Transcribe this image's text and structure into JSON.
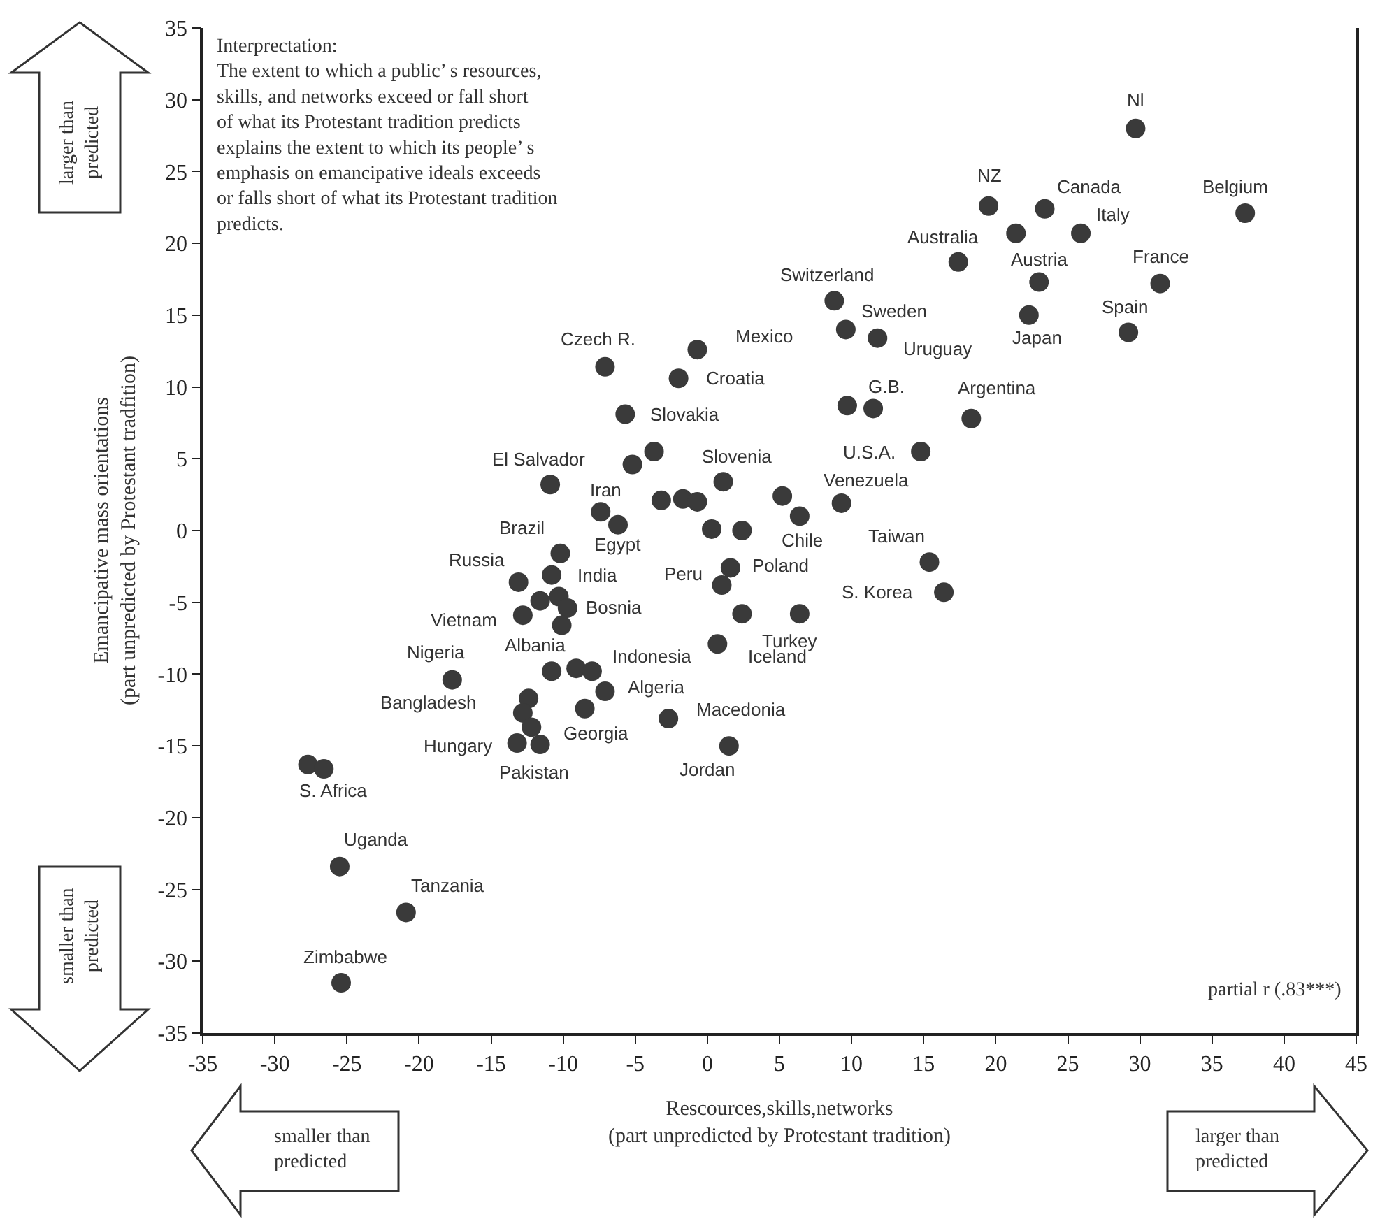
{
  "chart_data": {
    "type": "scatter",
    "xlabel": "Rescources,skills,networks\n(part unpredicted by Protestant tradition)",
    "ylabel": "Emancipative mass orientations\n(part unpredicted by Protestant tradfition)",
    "x": [
      29.7,
      19.5,
      23.4,
      37.3,
      21.4,
      25.9,
      17.4,
      23.0,
      31.4,
      8.8,
      22.3,
      29.2,
      9.6,
      11.8,
      9.7,
      11.5,
      18.3,
      14.8,
      9.3,
      15.4,
      16.4,
      -7.1,
      -0.7,
      -2.0,
      -5.7,
      -5.2,
      -3.7,
      -10.9,
      -7.4,
      -6.2,
      -3.2,
      -1.7,
      -0.7,
      1.1,
      0.3,
      2.4,
      5.2,
      6.4,
      -10.2,
      -13.1,
      -10.8,
      -12.8,
      -11.6,
      -10.3,
      -9.7,
      -10.1,
      1.0,
      1.6,
      2.4,
      6.4,
      0.7,
      -10.8,
      -9.1,
      -8.0,
      -7.1,
      -8.5,
      -2.7,
      1.5,
      -17.7,
      -12.4,
      -12.8,
      -12.2,
      -13.2,
      -11.6,
      -27.7,
      -26.6,
      -25.5,
      -20.9,
      -25.4
    ],
    "values": [
      28.0,
      22.6,
      22.4,
      22.1,
      20.7,
      20.7,
      18.7,
      17.3,
      17.2,
      16.0,
      15.0,
      13.8,
      14.0,
      13.4,
      8.7,
      8.5,
      7.8,
      5.5,
      1.9,
      -2.2,
      -4.3,
      11.4,
      12.6,
      10.6,
      8.1,
      4.6,
      5.5,
      3.2,
      1.3,
      0.4,
      2.1,
      2.2,
      2.0,
      3.4,
      0.1,
      0.0,
      2.4,
      1.0,
      -1.6,
      -3.6,
      -3.1,
      -5.9,
      -4.9,
      -4.6,
      -5.4,
      -6.6,
      -3.8,
      -2.6,
      -5.8,
      -5.8,
      -7.9,
      -9.8,
      -9.6,
      -9.8,
      -11.2,
      -12.4,
      -13.1,
      -15.0,
      -10.4,
      -11.7,
      -12.7,
      -13.7,
      -14.8,
      -14.9,
      -16.3,
      -16.6,
      -23.4,
      -26.6,
      -31.5
    ],
    "color": "#3a3a3a",
    "marker": "circle",
    "xlim": [
      -35,
      45
    ],
    "xticks": [
      -35,
      -30,
      -25,
      -20,
      -15,
      -10,
      -5,
      0,
      5,
      10,
      15,
      20,
      25,
      30,
      35,
      40,
      45
    ],
    "ylim": [
      -35,
      35
    ],
    "yticks": [
      -35,
      -30,
      -25,
      -20,
      -15,
      -10,
      -5,
      0,
      5,
      10,
      15,
      20,
      25,
      30,
      35
    ],
    "annotations": [
      "Interprectation:\nThe extent to which a public’ s resources,\nskills, and networks exceed or fall short\nof what its Protestant tradition predicts\nexplains the extent to which its people’ s\nemphasis on emancipative ideals exceeds\nor falls short of what its Protestant tradition\npredicts.",
      "partial r (.83***)",
      "larger than\npredicted",
      "smaller than\npredicted",
      "smaller than\npredicted",
      "larger than\npredicted",
      {
        "text": "Nl",
        "x": 29.7,
        "y": 28.0
      },
      {
        "text": "NZ",
        "x": 19.5,
        "y": 22.6
      },
      {
        "text": "Canada",
        "x": 23.4,
        "y": 22.4
      },
      {
        "text": "Belgium",
        "x": 37.3,
        "y": 22.1
      },
      {
        "text": "Australia",
        "x": 21.4,
        "y": 20.7
      },
      {
        "text": "Italy",
        "x": 25.9,
        "y": 20.7
      },
      {
        "text": "Austria",
        "x": 23.0,
        "y": 17.3
      },
      {
        "text": "France",
        "x": 31.4,
        "y": 17.2
      },
      {
        "text": "Switzerland",
        "x": 8.8,
        "y": 16.0
      },
      {
        "text": "Japan",
        "x": 22.3,
        "y": 15.0
      },
      {
        "text": "Spain",
        "x": 29.2,
        "y": 13.8
      },
      {
        "text": "Sweden",
        "x": 9.6,
        "y": 14.0
      },
      {
        "text": "Uruguay",
        "x": 11.8,
        "y": 13.4
      },
      {
        "text": "G.B.",
        "x": 11.5,
        "y": 8.5
      },
      {
        "text": "Argentina",
        "x": 18.3,
        "y": 7.8
      },
      {
        "text": "U.S.A.",
        "x": 14.8,
        "y": 5.5
      },
      {
        "text": "Venezuela",
        "x": 9.3,
        "y": 1.9
      },
      {
        "text": "Taiwan",
        "x": 15.4,
        "y": -2.2
      },
      {
        "text": "S. Korea",
        "x": 16.4,
        "y": -4.3
      },
      {
        "text": "Czech R.",
        "x": -7.1,
        "y": 11.4
      },
      {
        "text": "Mexico",
        "x": -0.7,
        "y": 12.6
      },
      {
        "text": "Croatia",
        "x": -2.0,
        "y": 10.6
      },
      {
        "text": "Slovakia",
        "x": -5.7,
        "y": 8.1
      },
      {
        "text": "El Salvador",
        "x": -10.9,
        "y": 3.2
      },
      {
        "text": "Iran",
        "x": -7.4,
        "y": 1.3
      },
      {
        "text": "Egypt",
        "x": -6.2,
        "y": 0.4
      },
      {
        "text": "Slovenia",
        "x": 1.1,
        "y": 3.4
      },
      {
        "text": "Chile",
        "x": 6.4,
        "y": 1.0
      },
      {
        "text": "Brazil",
        "x": -10.2,
        "y": -1.6
      },
      {
        "text": "Russia",
        "x": -13.1,
        "y": -3.6
      },
      {
        "text": "India",
        "x": -10.8,
        "y": -3.1
      },
      {
        "text": "Vietnam",
        "x": -12.8,
        "y": -5.9
      },
      {
        "text": "Bosnia",
        "x": -9.7,
        "y": -5.4
      },
      {
        "text": "Peru",
        "x": 1.0,
        "y": -3.8
      },
      {
        "text": "Poland",
        "x": 1.6,
        "y": -2.6
      },
      {
        "text": "Turkey",
        "x": 6.4,
        "y": -5.8
      },
      {
        "text": "Iceland",
        "x": 0.7,
        "y": -7.9
      },
      {
        "text": "Albania",
        "x": -10.8,
        "y": -9.8
      },
      {
        "text": "Indonesia",
        "x": -8.0,
        "y": -9.8
      },
      {
        "text": "Algeria",
        "x": -7.1,
        "y": -11.2
      },
      {
        "text": "Georgia",
        "x": -8.5,
        "y": -12.4
      },
      {
        "text": "Macedonia",
        "x": -2.7,
        "y": -13.1
      },
      {
        "text": "Jordan",
        "x": 1.5,
        "y": -15.0
      },
      {
        "text": "Nigeria",
        "x": -17.7,
        "y": -10.4
      },
      {
        "text": "Bangladesh",
        "x": -12.4,
        "y": -11.7
      },
      {
        "text": "Hungary",
        "x": -13.2,
        "y": -14.8
      },
      {
        "text": "Pakistan",
        "x": -11.6,
        "y": -14.9
      },
      {
        "text": "S. Africa",
        "x": -27.7,
        "y": -16.3
      },
      {
        "text": "Uganda",
        "x": -25.5,
        "y": -23.4
      },
      {
        "text": "Tanzania",
        "x": -20.9,
        "y": -26.6
      },
      {
        "text": "Zimbabwe",
        "x": -25.4,
        "y": -31.5
      }
    ]
  }
}
